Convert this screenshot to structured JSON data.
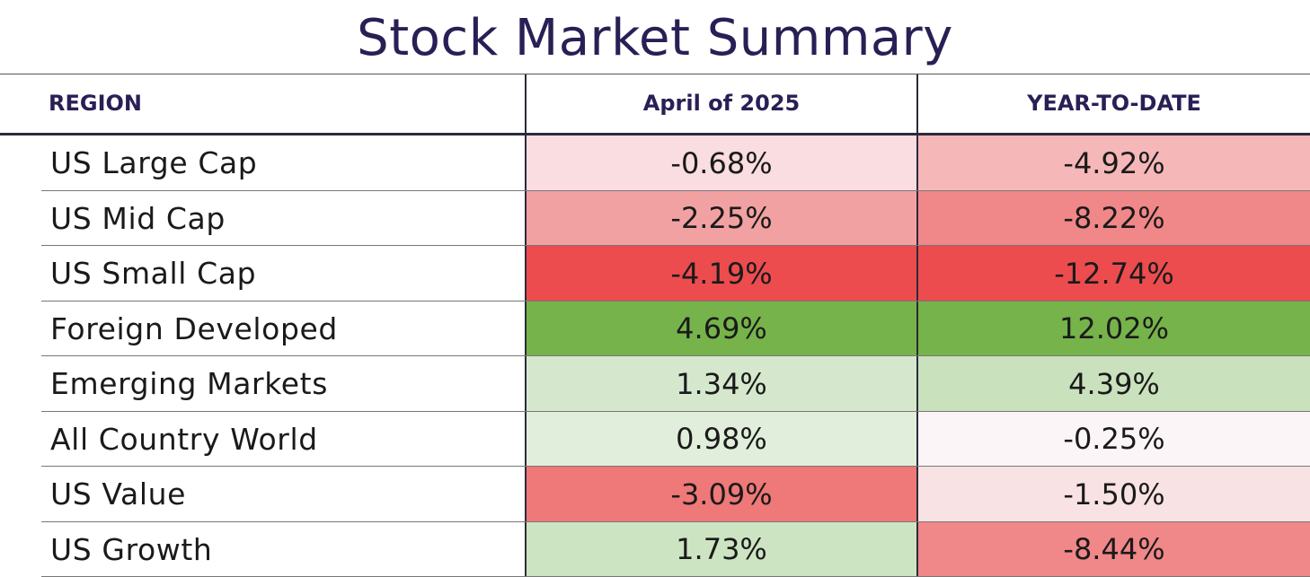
{
  "chart_data": {
    "type": "table",
    "title": "Stock Market Summary",
    "columns": [
      "REGION",
      "April of 2025",
      "YEAR-TO-DATE"
    ],
    "rows": [
      {
        "region": "US Large Cap",
        "april": "-0.68%",
        "ytd": "-4.92%",
        "april_color": "#f9dde0",
        "ytd_color": "#f5b7b8"
      },
      {
        "region": "US Mid Cap",
        "april": "-2.25%",
        "ytd": "-8.22%",
        "april_color": "#f2a1a3",
        "ytd_color": "#f08788"
      },
      {
        "region": "US Small Cap",
        "april": "-4.19%",
        "ytd": "-12.74%",
        "april_color": "#ec4c4e",
        "ytd_color": "#ec4c4e"
      },
      {
        "region": "Foreign Developed",
        "april": "4.69%",
        "ytd": "12.02%",
        "april_color": "#76b34a",
        "ytd_color": "#76b34a"
      },
      {
        "region": "Emerging Markets",
        "april": "1.34%",
        "ytd": "4.39%",
        "april_color": "#d5e8cd",
        "ytd_color": "#c9e1bc"
      },
      {
        "region": "All Country World",
        "april": "0.98%",
        "ytd": "-0.25%",
        "april_color": "#e1eedb",
        "ytd_color": "#fbf5f8"
      },
      {
        "region": "US Value",
        "april": "-3.09%",
        "ytd": "-1.50%",
        "april_color": "#ef7878",
        "ytd_color": "#f9e2e4"
      },
      {
        "region": "US Growth",
        "april": "1.73%",
        "ytd": "-8.44%",
        "april_color": "#cde4c2",
        "ytd_color": "#f08788"
      }
    ]
  }
}
